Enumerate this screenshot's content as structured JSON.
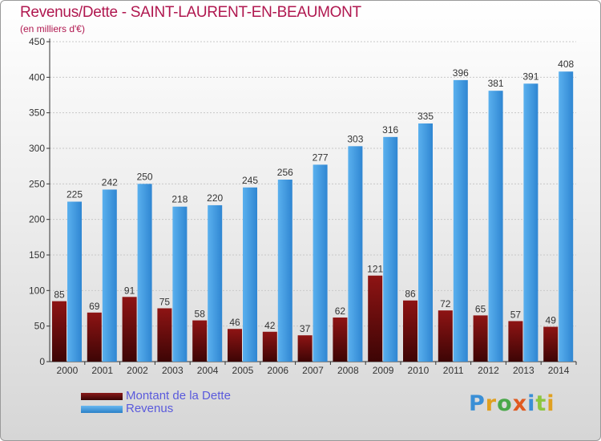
{
  "header": {
    "title": "Revenus/Dette - SAINT-LAURENT-EN-BEAUMONT",
    "subtitle": "(en milliers d'€)"
  },
  "colors": {
    "title": "#b0174f",
    "debt": "#7a0f0f",
    "revenue": "#3e9be0",
    "legend_text": "#5a5adc"
  },
  "chart_data": {
    "type": "bar",
    "categories": [
      "2000",
      "2001",
      "2002",
      "2003",
      "2004",
      "2005",
      "2006",
      "2007",
      "2008",
      "2009",
      "2010",
      "2011",
      "2012",
      "2013",
      "2014"
    ],
    "series": [
      {
        "name": "Montant de la Dette",
        "values": [
          85,
          69,
          91,
          75,
          58,
          46,
          42,
          37,
          62,
          121,
          86,
          72,
          65,
          57,
          49
        ]
      },
      {
        "name": "Revenus",
        "values": [
          225,
          242,
          250,
          218,
          220,
          245,
          256,
          277,
          303,
          316,
          335,
          396,
          381,
          391,
          408
        ]
      }
    ],
    "ylim": [
      0,
      450
    ],
    "yticks": [
      0,
      50,
      100,
      150,
      200,
      250,
      300,
      350,
      400,
      450
    ],
    "grid": true,
    "legend_position": "bottom-left"
  },
  "logo": {
    "letters": [
      "P",
      "r",
      "o",
      "x",
      "i",
      "t",
      "i"
    ],
    "colors": [
      "#3a8fd6",
      "#e0a020",
      "#4aa84a",
      "#e05a20",
      "#3a8fd6",
      "#8cc63f",
      "#e0a020"
    ]
  }
}
